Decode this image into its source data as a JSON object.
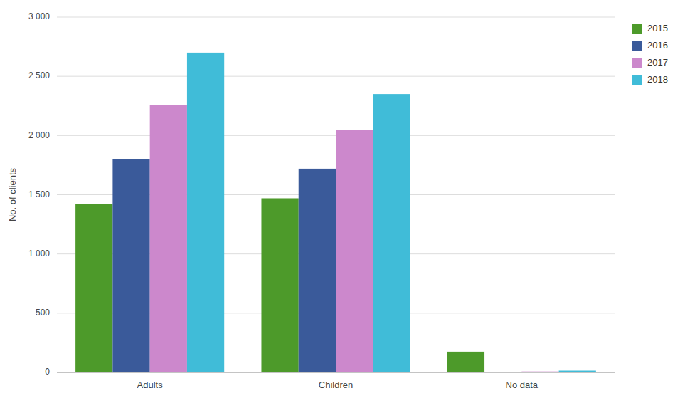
{
  "chart_data": {
    "type": "bar",
    "ylabel": "No. of clients",
    "categories": [
      "Adults",
      "Children",
      "No data"
    ],
    "series": [
      {
        "name": "2015",
        "color": "#4d9a2a",
        "values": [
          1420,
          1470,
          175
        ]
      },
      {
        "name": "2016",
        "color": "#3a5a9a",
        "values": [
          1800,
          1720,
          5
        ]
      },
      {
        "name": "2017",
        "color": "#cc88cc",
        "values": [
          2260,
          2050,
          8
        ]
      },
      {
        "name": "2018",
        "color": "#40bcd8",
        "values": [
          2700,
          2350,
          15
        ]
      }
    ],
    "ylim": [
      0,
      3000
    ],
    "yticks": [
      0,
      500,
      {
        "value": 1000,
        "label": "1 000"
      },
      {
        "value": 1500,
        "label": "1 500"
      },
      {
        "value": 2000,
        "label": "2 000"
      },
      {
        "value": 2500,
        "label": "2 500"
      },
      {
        "value": 3000,
        "label": "3 000"
      }
    ],
    "grid": true,
    "legend": "right"
  }
}
